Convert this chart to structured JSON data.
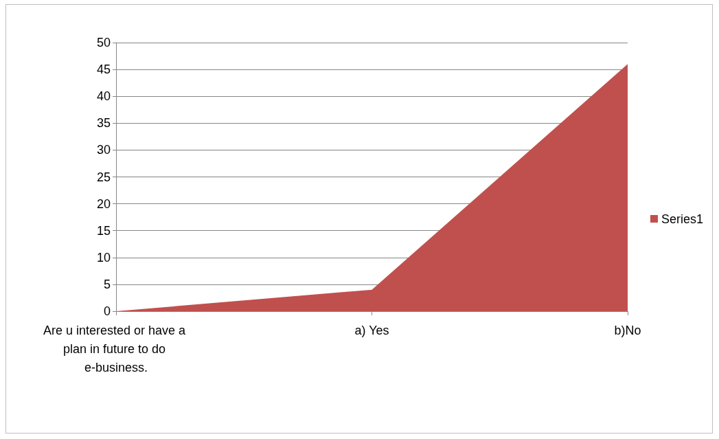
{
  "chart_data": {
    "type": "area",
    "categories": [
      "Are u interested or have a plan in future to do e-business.",
      "a) Yes",
      "b)No"
    ],
    "series": [
      {
        "name": "Series1",
        "color": "#c0504d",
        "values": [
          0,
          4,
          46
        ]
      }
    ],
    "ylim": [
      0,
      50
    ],
    "yticks": [
      0,
      5,
      10,
      15,
      20,
      25,
      30,
      35,
      40,
      45,
      50
    ],
    "grid": "y",
    "legend": "right",
    "marker": "none"
  }
}
